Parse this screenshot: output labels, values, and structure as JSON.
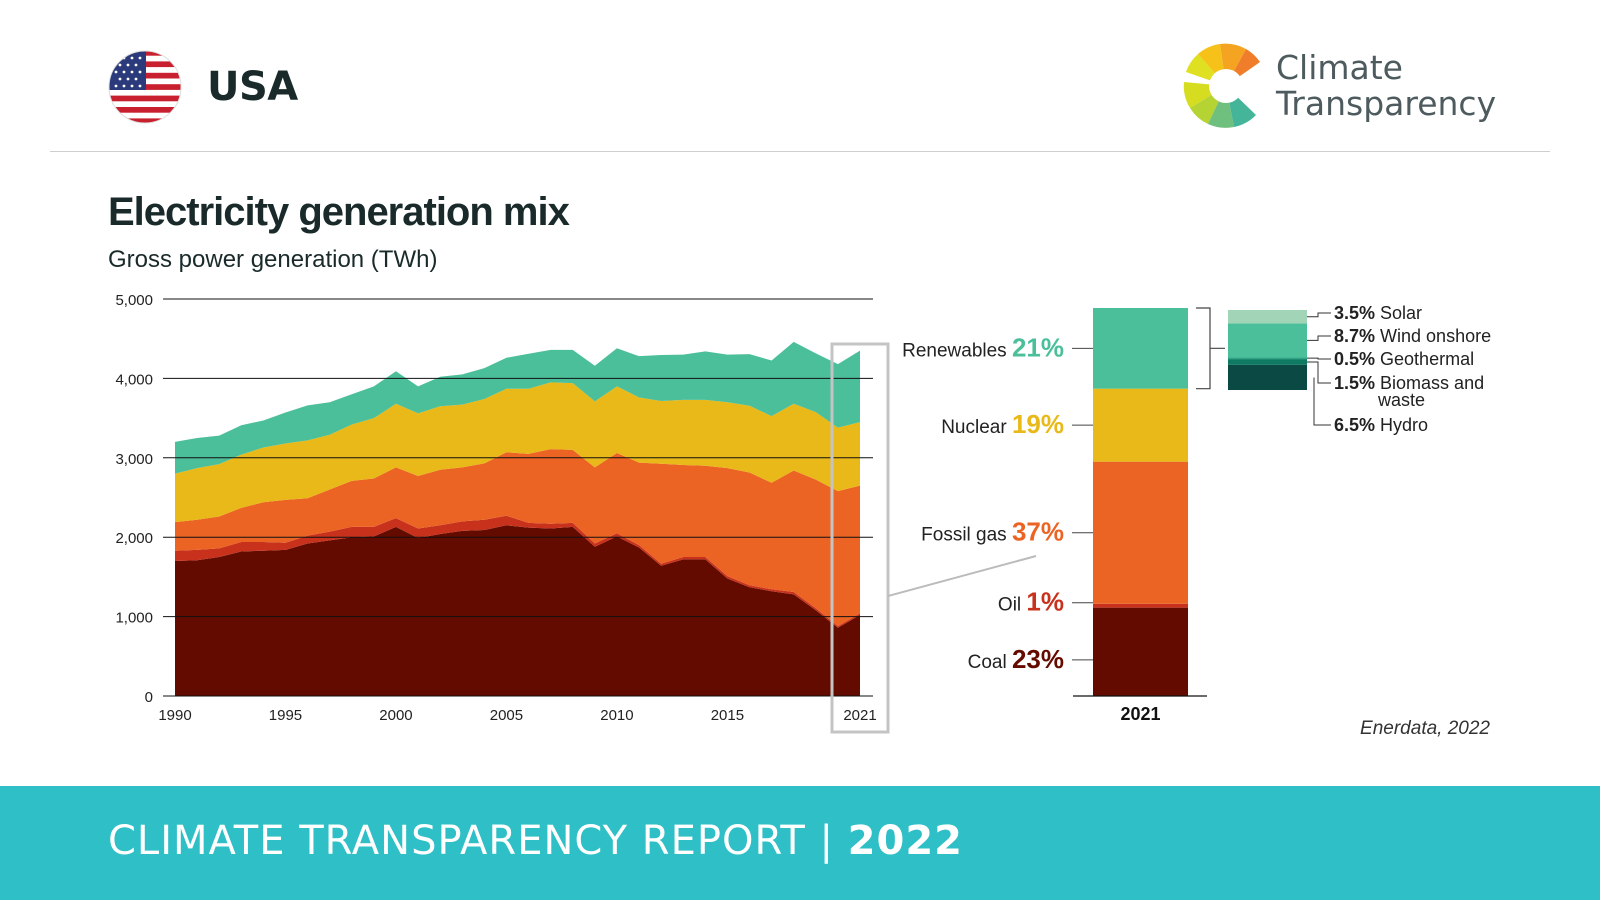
{
  "header": {
    "country": "USA",
    "brand_line1": "Climate",
    "brand_line2": "Transparency",
    "flag_icon": "us-flag-icon",
    "logo_icon": "climate-transparency-logo-icon"
  },
  "chart_data": [
    {
      "type": "area",
      "stacked": true,
      "title": "Electricity generation mix",
      "subtitle": "Gross power generation (TWh)",
      "ylim": [
        0,
        5000
      ],
      "yticks": [
        "0",
        "1,000",
        "2,000",
        "3,000",
        "4,000",
        "5,000"
      ],
      "xticks": [
        "1990",
        "1995",
        "2000",
        "2005",
        "2010",
        "2015",
        "2021"
      ],
      "x": [
        1990,
        1991,
        1992,
        1993,
        1994,
        1995,
        1996,
        1997,
        1998,
        1999,
        2000,
        2001,
        2002,
        2003,
        2004,
        2005,
        2006,
        2007,
        2008,
        2009,
        2010,
        2011,
        2012,
        2013,
        2014,
        2015,
        2016,
        2017,
        2018,
        2019,
        2020,
        2021
      ],
      "grid": true,
      "series": [
        {
          "name": "Coal",
          "color": "#640b00",
          "values": [
            1700,
            1710,
            1750,
            1820,
            1830,
            1840,
            1920,
            1960,
            2000,
            2010,
            2130,
            1990,
            2040,
            2080,
            2090,
            2150,
            2120,
            2110,
            2130,
            1880,
            2010,
            1870,
            1640,
            1720,
            1720,
            1480,
            1370,
            1320,
            1280,
            1080,
            860,
            1020
          ]
        },
        {
          "name": "Oil",
          "color": "#c8321c",
          "values": [
            130,
            130,
            110,
            120,
            110,
            90,
            100,
            110,
            130,
            120,
            110,
            120,
            110,
            120,
            130,
            120,
            60,
            60,
            50,
            40,
            40,
            30,
            25,
            30,
            30,
            30,
            25,
            25,
            30,
            25,
            20,
            20
          ]
        },
        {
          "name": "Fossil gas",
          "color": "#eb6424",
          "values": [
            360,
            380,
            400,
            430,
            500,
            540,
            470,
            530,
            580,
            610,
            640,
            660,
            700,
            680,
            710,
            800,
            870,
            940,
            920,
            960,
            1010,
            1040,
            1260,
            1160,
            1150,
            1360,
            1420,
            1340,
            1530,
            1620,
            1700,
            1610
          ]
        },
        {
          "name": "Nuclear",
          "color": "#e8b919",
          "values": [
            610,
            650,
            660,
            670,
            690,
            710,
            730,
            690,
            710,
            760,
            800,
            790,
            800,
            790,
            810,
            800,
            820,
            840,
            840,
            830,
            840,
            820,
            790,
            820,
            830,
            830,
            840,
            840,
            840,
            850,
            800,
            800
          ]
        },
        {
          "name": "Renewables",
          "color": "#4bbf9a",
          "values": [
            400,
            380,
            360,
            370,
            340,
            390,
            440,
            410,
            380,
            400,
            410,
            340,
            370,
            380,
            390,
            390,
            440,
            410,
            420,
            450,
            480,
            520,
            580,
            570,
            610,
            600,
            650,
            700,
            780,
            740,
            800,
            900
          ]
        }
      ]
    },
    {
      "type": "bar",
      "stacked": true,
      "categories": [
        "2021"
      ],
      "series": [
        {
          "name": "Coal",
          "percent": "23%",
          "value": 23,
          "color": "#640b00"
        },
        {
          "name": "Oil",
          "percent": "1%",
          "value": 1,
          "color": "#c8321c"
        },
        {
          "name": "Fossil gas",
          "percent": "37%",
          "value": 37,
          "color": "#eb6424"
        },
        {
          "name": "Nuclear",
          "percent": "19%",
          "value": 19,
          "color": "#e8b919"
        },
        {
          "name": "Renewables",
          "percent": "21%",
          "value": 21,
          "color": "#4bbf9a"
        }
      ],
      "renewables_breakdown": [
        {
          "name": "Hydro",
          "percent": "6.5%",
          "value": 6.5,
          "color": "#0b4a44"
        },
        {
          "name": "Biomass and waste",
          "line1": "Biomass and",
          "line2": "waste",
          "percent": "1.5%",
          "value": 1.5,
          "color": "#0e7a62"
        },
        {
          "name": "Geothermal",
          "percent": "0.5%",
          "value": 0.5,
          "color": "#2aa784"
        },
        {
          "name": "Wind onshore",
          "percent": "8.7%",
          "value": 8.7,
          "color": "#4bbf9a"
        },
        {
          "name": "Solar",
          "percent": "3.5%",
          "value": 3.5,
          "color": "#a2d4b8"
        }
      ]
    }
  ],
  "source": "Enerdata, 2022",
  "footer": {
    "label": "CLIMATE TRANSPARENCY REPORT |",
    "year": "2022"
  }
}
